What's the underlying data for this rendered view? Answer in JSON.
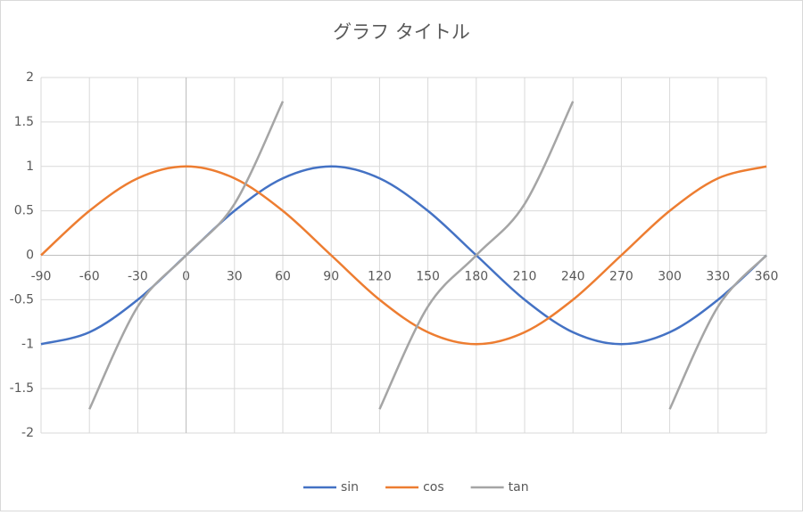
{
  "chart_data": {
    "type": "line",
    "title": "グラフ タイトル",
    "x": [
      -90,
      -60,
      -30,
      0,
      30,
      60,
      90,
      120,
      150,
      180,
      210,
      240,
      270,
      300,
      330,
      360
    ],
    "series": [
      {
        "name": "sin",
        "color": "#4472c4",
        "values": [
          -1,
          -0.866,
          -0.5,
          0,
          0.5,
          0.866,
          1,
          0.866,
          0.5,
          0,
          -0.5,
          -0.866,
          -1,
          -0.866,
          -0.5,
          0
        ]
      },
      {
        "name": "cos",
        "color": "#ed7d31",
        "values": [
          0,
          0.5,
          0.866,
          1,
          0.866,
          0.5,
          0,
          -0.5,
          -0.866,
          -1,
          -0.866,
          -0.5,
          0,
          0.5,
          0.866,
          1
        ]
      },
      {
        "name": "tan",
        "color": "#a5a5a5",
        "values": [
          null,
          -1.732,
          -0.577,
          0,
          0.577,
          1.732,
          null,
          -1.732,
          -0.577,
          0,
          0.577,
          1.732,
          null,
          -1.732,
          -0.577,
          0
        ]
      }
    ],
    "xlim": [
      -90,
      360
    ],
    "xticks": [
      -90,
      -60,
      -30,
      0,
      30,
      60,
      90,
      120,
      150,
      180,
      210,
      240,
      270,
      300,
      330,
      360
    ],
    "ylim": [
      -2,
      2
    ],
    "yticks": [
      -2,
      -1.5,
      -1,
      -0.5,
      0,
      0.5,
      1,
      1.5,
      2
    ],
    "grid": true,
    "smooth": true,
    "legend": "bottom"
  }
}
